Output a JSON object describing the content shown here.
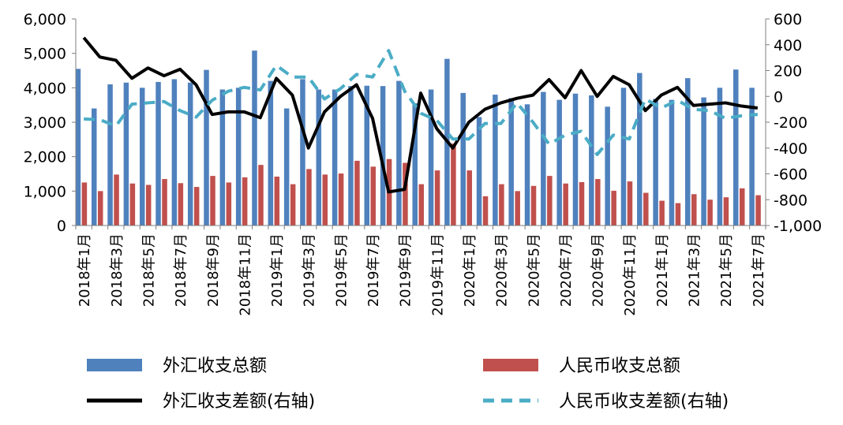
{
  "chart_data": {
    "type": "bar",
    "categories": [
      "2018年1月",
      "2018年2月",
      "2018年3月",
      "2018年4月",
      "2018年5月",
      "2018年6月",
      "2018年7月",
      "2018年8月",
      "2018年9月",
      "2018年10月",
      "2018年11月",
      "2018年12月",
      "2019年1月",
      "2019年2月",
      "2019年3月",
      "2019年4月",
      "2019年5月",
      "2019年6月",
      "2019年7月",
      "2019年8月",
      "2019年9月",
      "2019年10月",
      "2019年11月",
      "2019年12月",
      "2020年1月",
      "2020年2月",
      "2020年3月",
      "2020年4月",
      "2020年5月",
      "2020年6月",
      "2020年7月",
      "2020年8月",
      "2020年9月",
      "2020年10月",
      "2020年11月",
      "2020年12月",
      "2021年1月",
      "2021年2月",
      "2021年3月",
      "2021年4月",
      "2021年5月",
      "2021年6月",
      "2021年7月"
    ],
    "x_tick_labels": [
      "2018年1月",
      "2018年3月",
      "2018年5月",
      "2018年7月",
      "2018年9月",
      "2018年11月",
      "2019年1月",
      "2019年3月",
      "2019年5月",
      "2019年7月",
      "2019年9月",
      "2019年11月",
      "2020年1月",
      "2020年3月",
      "2020年5月",
      "2020年7月",
      "2020年9月",
      "2020年11月",
      "2021年1月",
      "2021年3月",
      "2021年5月",
      "2021年7月"
    ],
    "left_axis": {
      "min": 0,
      "max": 6000,
      "ticks": [
        "0",
        "1,000",
        "2,000",
        "3,000",
        "4,000",
        "5,000",
        "6,000"
      ]
    },
    "right_axis": {
      "min": -1000,
      "max": 600,
      "ticks": [
        "-1,000",
        "-800",
        "-600",
        "-400",
        "-200",
        "0",
        "200",
        "400",
        "600"
      ]
    },
    "series": [
      {
        "name": "外汇收支总额",
        "type": "bar",
        "axis": "left",
        "color": "#4f81bd",
        "values": [
          4550,
          3400,
          4100,
          4150,
          4000,
          4170,
          4250,
          4150,
          4520,
          3950,
          4000,
          5080,
          4200,
          3400,
          4250,
          3950,
          3950,
          4050,
          4060,
          4050,
          4200,
          3550,
          3950,
          4840,
          3850,
          3150,
          3800,
          3700,
          3520,
          3880,
          3650,
          3830,
          3780,
          3450,
          4000,
          4430,
          3680,
          3650,
          4280,
          3720,
          4000,
          4530,
          4000
        ]
      },
      {
        "name": "人民币收支总额",
        "type": "bar",
        "axis": "left",
        "color": "#c0504d",
        "values": [
          1250,
          1000,
          1480,
          1220,
          1180,
          1350,
          1230,
          1120,
          1440,
          1250,
          1400,
          1760,
          1420,
          1200,
          1640,
          1480,
          1510,
          1880,
          1710,
          1930,
          1820,
          1200,
          1600,
          2380,
          1600,
          850,
          1200,
          1000,
          1150,
          1440,
          1220,
          1260,
          1350,
          1010,
          1280,
          950,
          720,
          650,
          910,
          750,
          820,
          1080,
          880
        ]
      },
      {
        "name": "外汇收支差额(右轴)",
        "type": "line",
        "axis": "right",
        "color": "#000000",
        "dash": "solid",
        "values": [
          455,
          305,
          280,
          140,
          220,
          160,
          210,
          90,
          -140,
          -120,
          -120,
          -165,
          140,
          10,
          -400,
          -120,
          0,
          90,
          -170,
          -740,
          -720,
          25,
          -250,
          -400,
          -200,
          -100,
          -50,
          -15,
          10,
          130,
          -10,
          200,
          0,
          155,
          90,
          -110,
          10,
          70,
          -70,
          -60,
          -50,
          -75,
          -90
        ]
      },
      {
        "name": "人民币收支差额(右轴)",
        "type": "line",
        "axis": "right",
        "color": "#4bacc6",
        "dash": "dashed",
        "values": [
          -175,
          -180,
          -230,
          -60,
          -50,
          -40,
          -110,
          -160,
          -30,
          40,
          70,
          50,
          240,
          150,
          150,
          -20,
          60,
          170,
          150,
          355,
          40,
          -130,
          -185,
          -330,
          -330,
          -210,
          -210,
          -50,
          -200,
          -370,
          -300,
          -270,
          -450,
          -300,
          -330,
          -20,
          -90,
          -30,
          -100,
          -110,
          -170,
          -150,
          -140
        ]
      }
    ],
    "legend_position": "bottom",
    "grid": false
  }
}
